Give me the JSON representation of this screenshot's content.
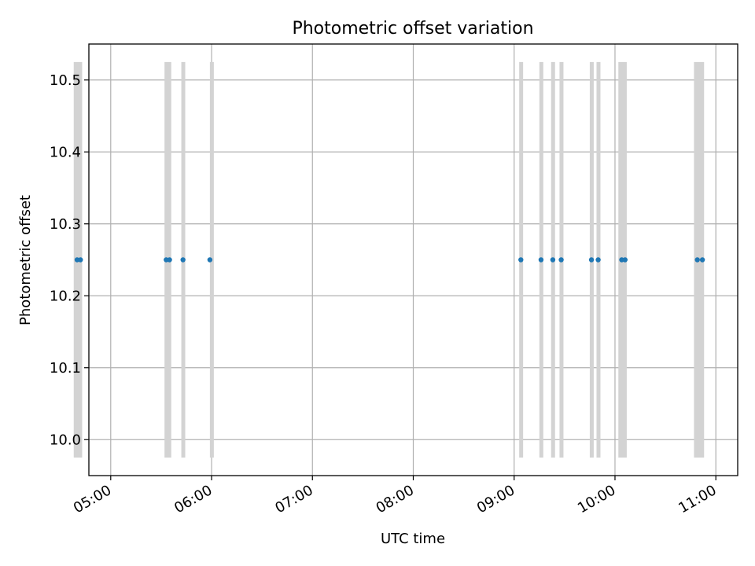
{
  "chart_data": {
    "type": "scatter",
    "title": "Photometric offset variation",
    "xlabel": "UTC time",
    "ylabel": "Photometric offset",
    "x_axis_kind": "time",
    "xlim": [
      "04:47",
      "11:13"
    ],
    "ylim": [
      9.95,
      10.55
    ],
    "xticks": [
      "05:00",
      "06:00",
      "07:00",
      "08:00",
      "09:00",
      "10:00",
      "11:00"
    ],
    "yticks": [
      10.0,
      10.1,
      10.2,
      10.3,
      10.4,
      10.5
    ],
    "ytick_labels": [
      "10.0",
      "10.1",
      "10.2",
      "10.3",
      "10.4",
      "10.5"
    ],
    "grid": true,
    "legend": "none",
    "series": [
      {
        "color": "#1f77b4",
        "points": [
          {
            "x": "04:40",
            "y": 10.25
          },
          {
            "x": "04:42",
            "y": 10.25
          },
          {
            "x": "05:33",
            "y": 10.25
          },
          {
            "x": "05:35",
            "y": 10.25
          },
          {
            "x": "05:43",
            "y": 10.25
          },
          {
            "x": "05:59",
            "y": 10.25
          },
          {
            "x": "09:04",
            "y": 10.25
          },
          {
            "x": "09:16",
            "y": 10.25
          },
          {
            "x": "09:23",
            "y": 10.25
          },
          {
            "x": "09:28",
            "y": 10.25
          },
          {
            "x": "09:46",
            "y": 10.25
          },
          {
            "x": "09:50",
            "y": 10.25
          },
          {
            "x": "10:04",
            "y": 10.25
          },
          {
            "x": "10:06",
            "y": 10.25
          },
          {
            "x": "10:49",
            "y": 10.25
          },
          {
            "x": "10:52",
            "y": 10.25
          }
        ]
      }
    ],
    "bands": {
      "color": "#d3d3d3",
      "y_range": [
        9.975,
        10.525
      ],
      "ranges": [
        [
          "04:38",
          "04:43"
        ],
        [
          "05:32",
          "05:36"
        ],
        [
          "05:42",
          "05:44"
        ],
        [
          "05:59",
          "06:00"
        ],
        [
          "09:03",
          "09:05"
        ],
        [
          "09:15",
          "09:17"
        ],
        [
          "09:22",
          "09:24"
        ],
        [
          "09:27",
          "09:29"
        ],
        [
          "09:45",
          "09:47"
        ],
        [
          "09:49",
          "09:51"
        ],
        [
          "10:02",
          "10:07"
        ],
        [
          "10:47",
          "10:53"
        ]
      ]
    }
  }
}
